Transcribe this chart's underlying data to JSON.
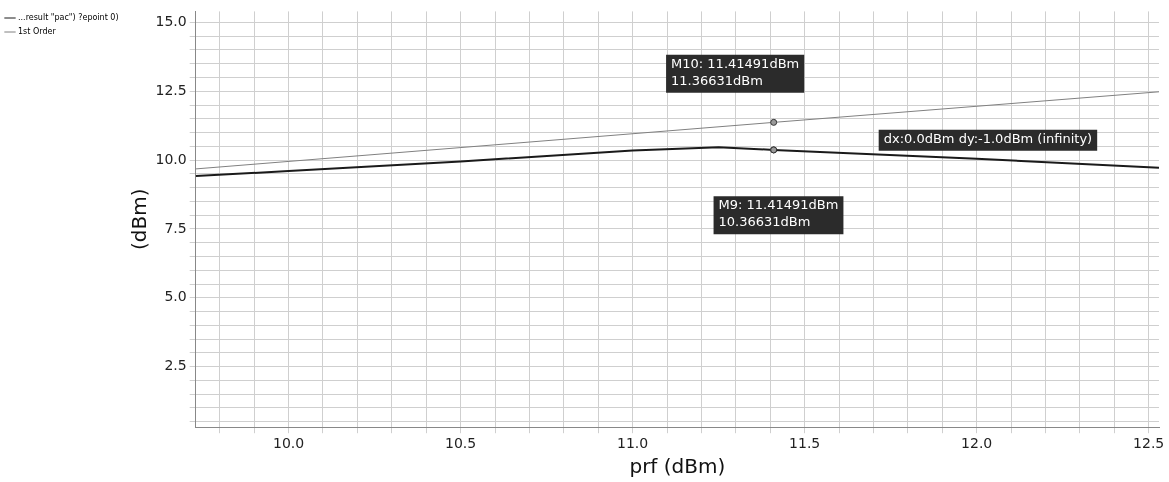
{
  "chart_data": {
    "type": "line",
    "xlabel": "prf (dBm)",
    "ylabel": "(dBm)",
    "xlim": [
      9.73,
      12.53
    ],
    "ylim": [
      0.3,
      15.4
    ],
    "xticks": [
      {
        "value": 9.8,
        "label": null
      },
      {
        "value": 9.9,
        "label": null
      },
      {
        "value": 10,
        "label": "10.0"
      },
      {
        "value": 10.1,
        "label": null
      },
      {
        "value": 10.2,
        "label": null
      },
      {
        "value": 10.3,
        "label": null
      },
      {
        "value": 10.4,
        "label": null
      },
      {
        "value": 10.5,
        "label": "10.5"
      },
      {
        "value": 10.6,
        "label": null
      },
      {
        "value": 10.7,
        "label": null
      },
      {
        "value": 10.8,
        "label": null
      },
      {
        "value": 10.9,
        "label": null
      },
      {
        "value": 11,
        "label": "11.0"
      },
      {
        "value": 11.1,
        "label": null
      },
      {
        "value": 11.2,
        "label": null
      },
      {
        "value": 11.3,
        "label": null
      },
      {
        "value": 11.4,
        "label": null
      },
      {
        "value": 11.5,
        "label": "11.5"
      },
      {
        "value": 11.6,
        "label": null
      },
      {
        "value": 11.7,
        "label": null
      },
      {
        "value": 11.8,
        "label": null
      },
      {
        "value": 11.9,
        "label": null
      },
      {
        "value": 12,
        "label": "12.0"
      },
      {
        "value": 12.1,
        "label": null
      },
      {
        "value": 12.2,
        "label": null
      },
      {
        "value": 12.3,
        "label": null
      },
      {
        "value": 12.4,
        "label": null
      },
      {
        "value": 12.5,
        "label": "12.5"
      }
    ],
    "yticks": [
      {
        "value": 0.5,
        "label": null
      },
      {
        "value": 1,
        "label": null
      },
      {
        "value": 1.5,
        "label": null
      },
      {
        "value": 2,
        "label": null
      },
      {
        "value": 2.5,
        "label": "2.5"
      },
      {
        "value": 3,
        "label": null
      },
      {
        "value": 3.5,
        "label": null
      },
      {
        "value": 4,
        "label": null
      },
      {
        "value": 4.5,
        "label": null
      },
      {
        "value": 5,
        "label": "5.0"
      },
      {
        "value": 5.5,
        "label": null
      },
      {
        "value": 6,
        "label": null
      },
      {
        "value": 6.5,
        "label": null
      },
      {
        "value": 7,
        "label": null
      },
      {
        "value": 7.5,
        "label": "7.5"
      },
      {
        "value": 8,
        "label": null
      },
      {
        "value": 8.5,
        "label": null
      },
      {
        "value": 9,
        "label": null
      },
      {
        "value": 9.5,
        "label": null
      },
      {
        "value": 10,
        "label": "10.0"
      },
      {
        "value": 10.5,
        "label": null
      },
      {
        "value": 11,
        "label": null
      },
      {
        "value": 11.5,
        "label": null
      },
      {
        "value": 12,
        "label": null
      },
      {
        "value": 12.5,
        "label": "12.5"
      },
      {
        "value": 13,
        "label": null
      },
      {
        "value": 13.5,
        "label": null
      },
      {
        "value": 14,
        "label": null
      },
      {
        "value": 14.5,
        "label": null
      },
      {
        "value": 15,
        "label": "15.0"
      }
    ],
    "series": [
      {
        "name": "...result \"pac\") ?epoint 0)",
        "color": "#1a1a1a",
        "x": [
          9.73,
          10.0,
          10.5,
          11.0,
          11.25,
          11.41,
          12.0,
          12.53
        ],
        "values": [
          9.42,
          9.6,
          9.95,
          10.35,
          10.47,
          10.37,
          10.05,
          9.72
        ]
      },
      {
        "name": "1st Order",
        "color": "#808080",
        "x": [
          9.73,
          11.41,
          12.53
        ],
        "values": [
          9.68,
          11.37,
          12.48
        ]
      }
    ],
    "annotations": [
      "M10: 11.41491dBm\n11.36631dBm",
      "M9: 11.41491dBm\n10.36631dBm",
      "dx:0.0dBm dy:-1.0dBm (infinity)"
    ],
    "grid": true,
    "legend": "top left",
    "marker": "none",
    "line_style": "solid"
  }
}
